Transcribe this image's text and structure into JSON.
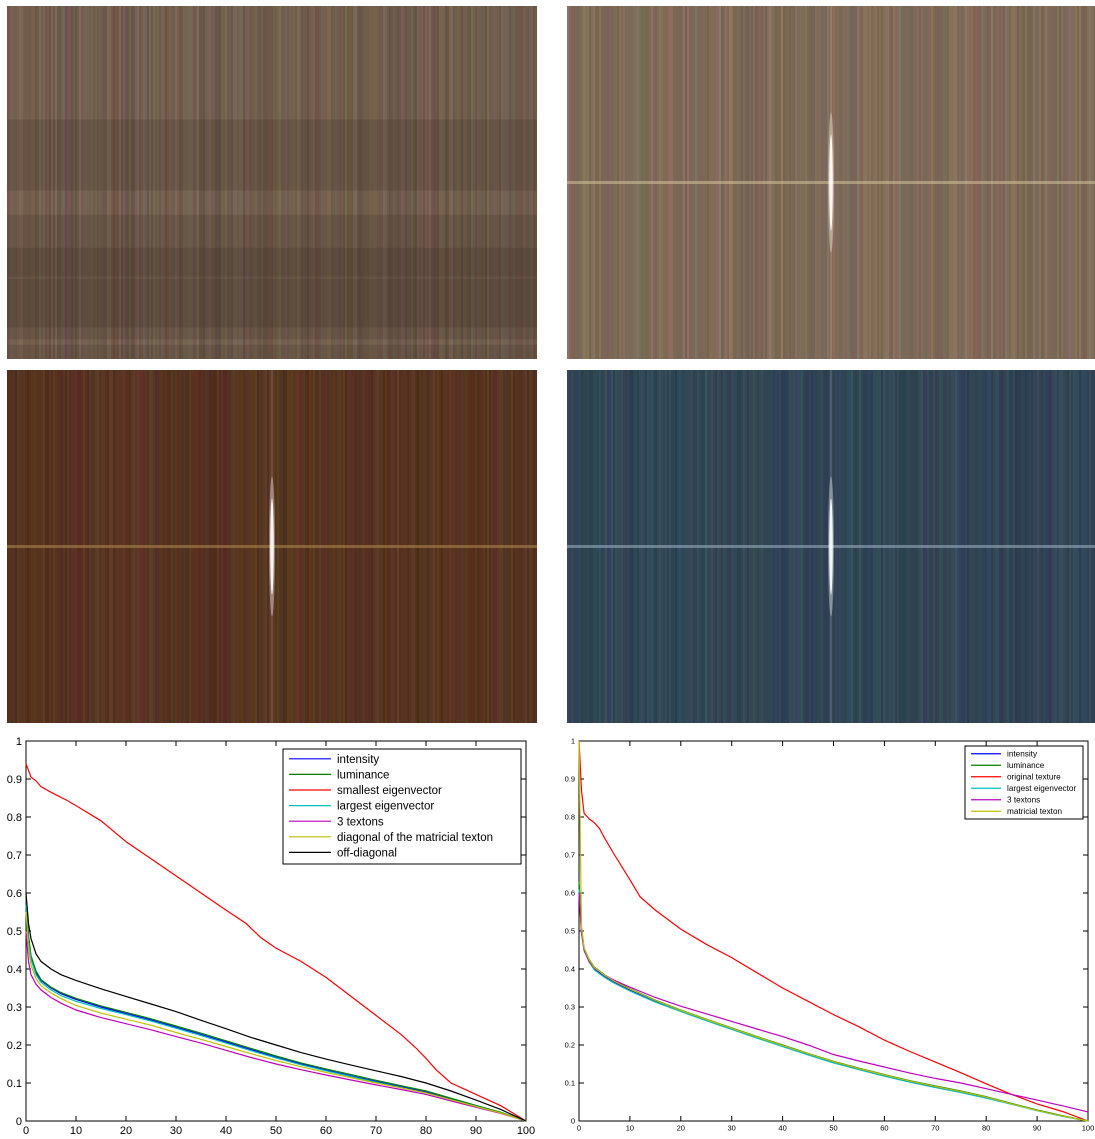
{
  "figure": {
    "images": [
      {
        "name": "original-texture",
        "base": "#6e5a4b",
        "tone": "#8a7462"
      },
      {
        "name": "spectrum-beige",
        "base": "#7a6756",
        "tone": "#957f6a"
      },
      {
        "name": "spectrum-brown",
        "base": "#55311f",
        "tone": "#6a4330"
      },
      {
        "name": "spectrum-blue",
        "base": "#2f4352",
        "tone": "#3f5869"
      }
    ]
  },
  "chart_data": [
    {
      "type": "line",
      "xlim": [
        0,
        100
      ],
      "ylim": [
        0,
        1
      ],
      "xticks": [
        "0",
        "10",
        "20",
        "30",
        "40",
        "50",
        "60",
        "70",
        "80",
        "90",
        "100"
      ],
      "yticks": [
        "0",
        "0.1",
        "0.2",
        "0.3",
        "0.4",
        "0.5",
        "0.6",
        "0.7",
        "0.8",
        "0.9",
        "1"
      ],
      "legend_position": "top-right",
      "series": [
        {
          "name": "intensity",
          "color": "#0000ff",
          "x": [
            0,
            0.5,
            1,
            2,
            3,
            5,
            7,
            10,
            15,
            20,
            25,
            30,
            35,
            40,
            45,
            50,
            55,
            60,
            65,
            70,
            75,
            80,
            85,
            90,
            95,
            100
          ],
          "y": [
            0.58,
            0.48,
            0.43,
            0.39,
            0.37,
            0.35,
            0.335,
            0.32,
            0.3,
            0.283,
            0.266,
            0.247,
            0.228,
            0.208,
            0.188,
            0.168,
            0.15,
            0.134,
            0.119,
            0.104,
            0.09,
            0.076,
            0.058,
            0.04,
            0.022,
            0.0
          ]
        },
        {
          "name": "luminance",
          "color": "#008000",
          "x": [
            0,
            0.5,
            1,
            2,
            3,
            5,
            7,
            10,
            15,
            20,
            25,
            30,
            35,
            40,
            45,
            50,
            55,
            60,
            65,
            70,
            75,
            80,
            85,
            90,
            95,
            100
          ],
          "y": [
            0.59,
            0.49,
            0.435,
            0.395,
            0.372,
            0.352,
            0.338,
            0.323,
            0.303,
            0.286,
            0.269,
            0.25,
            0.231,
            0.211,
            0.191,
            0.171,
            0.153,
            0.137,
            0.122,
            0.107,
            0.093,
            0.079,
            0.06,
            0.041,
            0.023,
            0.0
          ]
        },
        {
          "name": "smallest eigenvector",
          "color": "#ff0000",
          "x": [
            0,
            1,
            2,
            3,
            5,
            8,
            10,
            15,
            20,
            25,
            30,
            35,
            40,
            44,
            47,
            50,
            55,
            60,
            65,
            70,
            75,
            78,
            80,
            82,
            85,
            90,
            95,
            100
          ],
          "y": [
            0.94,
            0.905,
            0.895,
            0.88,
            0.865,
            0.845,
            0.83,
            0.79,
            0.735,
            0.69,
            0.645,
            0.6,
            0.555,
            0.52,
            0.482,
            0.455,
            0.42,
            0.378,
            0.328,
            0.278,
            0.228,
            0.192,
            0.165,
            0.135,
            0.1,
            0.07,
            0.04,
            0.0
          ]
        },
        {
          "name": "largest eigenvector",
          "color": "#00bfbf",
          "x": [
            0,
            0.5,
            1,
            2,
            3,
            5,
            7,
            10,
            15,
            20,
            25,
            30,
            35,
            40,
            45,
            50,
            55,
            60,
            65,
            70,
            75,
            80,
            85,
            90,
            95,
            100
          ],
          "y": [
            0.57,
            0.47,
            0.425,
            0.385,
            0.365,
            0.345,
            0.33,
            0.315,
            0.296,
            0.28,
            0.263,
            0.244,
            0.225,
            0.205,
            0.185,
            0.166,
            0.148,
            0.132,
            0.117,
            0.102,
            0.088,
            0.074,
            0.056,
            0.039,
            0.021,
            0.0
          ]
        },
        {
          "name": "3 textons",
          "color": "#bf00bf",
          "x": [
            0,
            0.5,
            1,
            2,
            3,
            5,
            7,
            10,
            15,
            20,
            25,
            30,
            35,
            40,
            45,
            50,
            55,
            60,
            65,
            70,
            75,
            80,
            85,
            90,
            95,
            100
          ],
          "y": [
            0.5,
            0.42,
            0.385,
            0.36,
            0.345,
            0.325,
            0.31,
            0.292,
            0.272,
            0.256,
            0.24,
            0.222,
            0.205,
            0.186,
            0.167,
            0.15,
            0.135,
            0.121,
            0.108,
            0.095,
            0.083,
            0.07,
            0.053,
            0.036,
            0.02,
            0.0
          ]
        },
        {
          "name": "diagonal of the matricial texton",
          "color": "#bfbf00",
          "x": [
            0,
            0.5,
            1,
            2,
            3,
            5,
            7,
            10,
            15,
            20,
            25,
            30,
            35,
            40,
            45,
            50,
            55,
            60,
            65,
            70,
            75,
            80,
            85,
            90,
            95,
            100
          ],
          "y": [
            0.55,
            0.455,
            0.41,
            0.375,
            0.356,
            0.337,
            0.322,
            0.304,
            0.284,
            0.268,
            0.252,
            0.233,
            0.215,
            0.196,
            0.177,
            0.159,
            0.143,
            0.128,
            0.114,
            0.1,
            0.087,
            0.074,
            0.056,
            0.038,
            0.021,
            0.0
          ]
        },
        {
          "name": "off-diagonal",
          "color": "#000000",
          "x": [
            0,
            0.5,
            1,
            2,
            3,
            5,
            7,
            10,
            15,
            20,
            25,
            30,
            35,
            40,
            45,
            50,
            55,
            60,
            65,
            70,
            75,
            80,
            85,
            90,
            95,
            100
          ],
          "y": [
            0.6,
            0.52,
            0.48,
            0.44,
            0.42,
            0.4,
            0.385,
            0.37,
            0.348,
            0.328,
            0.308,
            0.288,
            0.265,
            0.243,
            0.22,
            0.2,
            0.18,
            0.163,
            0.147,
            0.132,
            0.117,
            0.1,
            0.079,
            0.055,
            0.03,
            0.0
          ]
        }
      ]
    },
    {
      "type": "line",
      "xlim": [
        0,
        100
      ],
      "ylim": [
        0,
        1
      ],
      "xticks": [
        "0",
        "10",
        "20",
        "30",
        "40",
        "50",
        "60",
        "70",
        "80",
        "90",
        "100"
      ],
      "yticks": [
        "0",
        "0.1",
        "0.2",
        "0.3",
        "0.4",
        "0.5",
        "0.6",
        "0.7",
        "0.8",
        "0.9",
        "1"
      ],
      "legend_position": "top-right",
      "series": [
        {
          "name": "intensity",
          "color": "#0000ff",
          "x": [
            0,
            0.5,
            1,
            2,
            3,
            5,
            7,
            10,
            15,
            20,
            25,
            30,
            35,
            40,
            45,
            50,
            55,
            60,
            65,
            70,
            75,
            80,
            85,
            90,
            95,
            100
          ],
          "y": [
            0.62,
            0.5,
            0.45,
            0.42,
            0.4,
            0.38,
            0.365,
            0.345,
            0.315,
            0.29,
            0.266,
            0.243,
            0.22,
            0.198,
            0.176,
            0.155,
            0.137,
            0.12,
            0.104,
            0.09,
            0.077,
            0.062,
            0.045,
            0.028,
            0.013,
            0.0
          ]
        },
        {
          "name": "luminance",
          "color": "#008000",
          "x": [
            0,
            0.5,
            1,
            2,
            3,
            5,
            7,
            10,
            15,
            20,
            25,
            30,
            35,
            40,
            45,
            50,
            55,
            60,
            65,
            70,
            75,
            80,
            85,
            90,
            95,
            100
          ],
          "y": [
            0.63,
            0.51,
            0.455,
            0.425,
            0.405,
            0.385,
            0.368,
            0.348,
            0.318,
            0.292,
            0.268,
            0.245,
            0.222,
            0.2,
            0.178,
            0.157,
            0.139,
            0.122,
            0.106,
            0.092,
            0.079,
            0.064,
            0.046,
            0.029,
            0.014,
            0.0
          ]
        },
        {
          "name": "original texture",
          "color": "#ff0000",
          "x": [
            0,
            0.5,
            1,
            2,
            3,
            4,
            5,
            7,
            10,
            12,
            15,
            20,
            25,
            30,
            35,
            40,
            45,
            50,
            55,
            60,
            65,
            70,
            75,
            80,
            85,
            90,
            95,
            100
          ],
          "y": [
            1.0,
            0.87,
            0.81,
            0.795,
            0.785,
            0.77,
            0.745,
            0.7,
            0.635,
            0.59,
            0.555,
            0.505,
            0.465,
            0.43,
            0.39,
            0.35,
            0.315,
            0.28,
            0.248,
            0.213,
            0.183,
            0.155,
            0.127,
            0.098,
            0.07,
            0.045,
            0.025,
            0.0
          ]
        },
        {
          "name": "largest eigenvector",
          "color": "#00bfbf",
          "x": [
            0,
            0.5,
            1,
            2,
            3,
            5,
            7,
            10,
            15,
            20,
            25,
            30,
            35,
            40,
            45,
            50,
            55,
            60,
            65,
            70,
            75,
            80,
            85,
            90,
            95,
            100
          ],
          "y": [
            0.61,
            0.495,
            0.448,
            0.418,
            0.398,
            0.378,
            0.362,
            0.342,
            0.313,
            0.288,
            0.264,
            0.241,
            0.218,
            0.196,
            0.174,
            0.153,
            0.135,
            0.118,
            0.102,
            0.088,
            0.075,
            0.06,
            0.044,
            0.027,
            0.012,
            0.0
          ]
        },
        {
          "name": "3 textons",
          "color": "#bf00bf",
          "x": [
            0,
            0.5,
            1,
            2,
            3,
            5,
            7,
            10,
            15,
            20,
            25,
            30,
            35,
            40,
            45,
            50,
            55,
            60,
            65,
            70,
            75,
            80,
            85,
            90,
            95,
            100
          ],
          "y": [
            0.6,
            0.495,
            0.45,
            0.42,
            0.402,
            0.384,
            0.37,
            0.352,
            0.325,
            0.302,
            0.282,
            0.262,
            0.242,
            0.222,
            0.2,
            0.175,
            0.158,
            0.142,
            0.126,
            0.112,
            0.1,
            0.085,
            0.07,
            0.055,
            0.04,
            0.024
          ]
        },
        {
          "name": "matricial texton",
          "color": "#bfbf00",
          "x": [
            0,
            0.5,
            1,
            2,
            3,
            5,
            7,
            10,
            15,
            20,
            25,
            30,
            35,
            40,
            45,
            50,
            55,
            60,
            65,
            70,
            75,
            80,
            85,
            90,
            95,
            100
          ],
          "y": [
            1.0,
            0.51,
            0.455,
            0.424,
            0.404,
            0.384,
            0.367,
            0.347,
            0.317,
            0.291,
            0.267,
            0.244,
            0.221,
            0.199,
            0.177,
            0.156,
            0.138,
            0.121,
            0.105,
            0.091,
            0.078,
            0.063,
            0.045,
            0.028,
            0.013,
            0.0
          ]
        }
      ]
    }
  ]
}
